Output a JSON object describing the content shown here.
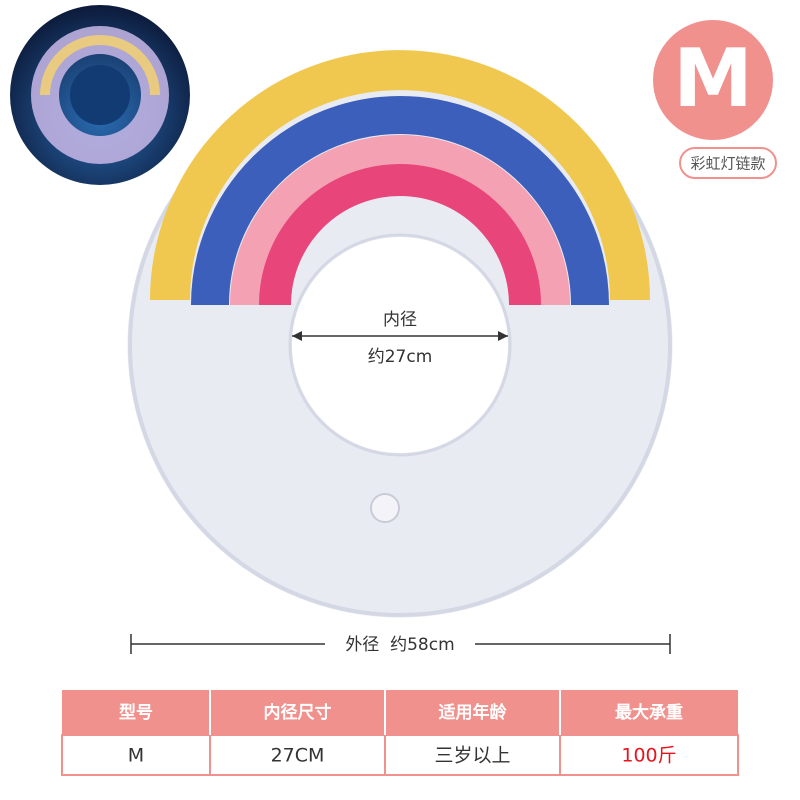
{
  "badge": "M",
  "style_label": "彩虹灯链款",
  "inner": {
    "label": "内径",
    "value": "约27cm"
  },
  "outer_label": "外径  约58cm",
  "table": {
    "headers": [
      "型号",
      "内径尺寸",
      "适用年龄",
      "最大承重"
    ],
    "rows": [
      [
        "M",
        "27CM",
        "三岁以上",
        "100斤"
      ]
    ]
  }
}
